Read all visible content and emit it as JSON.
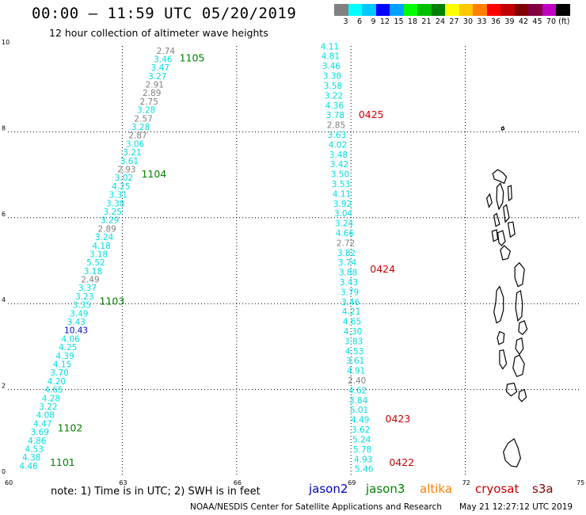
{
  "header": {
    "title": "00:00 – 11:59 UTC 05/20/2019",
    "subtitle": "12 hour collection of altimeter wave heights"
  },
  "colorbar": {
    "colors": [
      "#808080",
      "#00ffff",
      "#00c8ff",
      "#0000ff",
      "#00a0ff",
      "#00ff00",
      "#00c000",
      "#008000",
      "#ffff00",
      "#ffc800",
      "#ff8000",
      "#ff0000",
      "#c00000",
      "#800000",
      "#800040",
      "#c000c0",
      "#000000"
    ],
    "labels": [
      "3",
      "6",
      "9",
      "12",
      "15",
      "18",
      "21",
      "24",
      "27",
      "30",
      "33",
      "36",
      "39",
      "42",
      "45",
      "70",
      "(ft)"
    ]
  },
  "axes": {
    "x_ticks": [
      60,
      63,
      66,
      69,
      72,
      75
    ],
    "x_tick_labels": [
      "60",
      "63",
      "66",
      "69",
      "72",
      "75"
    ],
    "y_ticks": [
      0,
      2,
      4,
      6,
      8,
      10
    ],
    "y_tick_labels": [
      "0",
      "2",
      "4",
      "6",
      "8",
      "10"
    ],
    "xlim": [
      60,
      75
    ],
    "ylim": [
      0,
      10
    ]
  },
  "satellite_colors": {
    "jason2": "#0000cc",
    "jason3": "#008000",
    "altika": "#ff8000",
    "cryosat": "#cc0000",
    "s3a": "#8b0000",
    "gray": "#808080",
    "cyan": "#00e0e0"
  },
  "track1": {
    "start": [
      60.3,
      0.15
    ],
    "end": [
      63.9,
      9.82
    ],
    "values": [
      "4.46",
      "4.38",
      "4.53",
      "4.86",
      "3.69",
      "4.47",
      "4.08",
      "3.22",
      "4.28",
      "4.65",
      "4.20",
      "3.70",
      "4.15",
      "4.39",
      "4.25",
      "4.06",
      "10.43",
      "3.43",
      "3.49",
      "3.35",
      "3.23",
      "3.37",
      "2.49",
      "3.18",
      "5.52",
      "3.18",
      "4.18",
      "3.24",
      "2.89",
      "3.29",
      "3.25",
      "3.38",
      "3.31",
      "4.25",
      "3.02",
      "2.93",
      "3.61",
      "3.21",
      "3.06",
      "2.87",
      "3.28",
      "2.57",
      "3.28",
      "2.75",
      "2.89",
      "2.91",
      "3.27",
      "3.47",
      "3.46",
      "2.74"
    ],
    "colors": [
      "c",
      "c",
      "c",
      "c",
      "c",
      "c",
      "c",
      "c",
      "c",
      "c",
      "c",
      "c",
      "c",
      "c",
      "c",
      "c",
      "b",
      "c",
      "c",
      "c",
      "c",
      "c",
      "g",
      "c",
      "c",
      "c",
      "c",
      "c",
      "g",
      "c",
      "c",
      "c",
      "c",
      "c",
      "c",
      "g",
      "c",
      "c",
      "c",
      "g",
      "c",
      "g",
      "c",
      "g",
      "g",
      "g",
      "c",
      "c",
      "c",
      "g"
    ]
  },
  "track2": {
    "start": [
      69.1,
      0.08
    ],
    "end": [
      68.2,
      9.92
    ],
    "values": [
      "5.46",
      "4.93",
      "5.78",
      "5.24",
      "3.62",
      "4.49",
      "5.01",
      "3.84",
      "4.62",
      "2.40",
      "4.91",
      "3.61",
      "4.53",
      "3.83",
      "4.30",
      "4.65",
      "4.21",
      "3.46",
      "3.79",
      "3.43",
      "3.88",
      "3.74",
      "3.82",
      "2.72",
      "4.66",
      "3.24",
      "3.04",
      "3.92",
      "4.11",
      "3.53",
      "3.50",
      "3.42",
      "3.48",
      "4.02",
      "3.63",
      "2.85",
      "3.78",
      "4.36",
      "3.22",
      "3.58",
      "3.38",
      "3.46",
      "4.81",
      "4.11"
    ],
    "colors": [
      "c",
      "c",
      "c",
      "c",
      "c",
      "c",
      "c",
      "c",
      "c",
      "g",
      "c",
      "c",
      "c",
      "c",
      "c",
      "c",
      "c",
      "c",
      "c",
      "c",
      "c",
      "c",
      "c",
      "g",
      "c",
      "c",
      "c",
      "c",
      "c",
      "c",
      "c",
      "c",
      "c",
      "c",
      "c",
      "g",
      "c",
      "c",
      "c",
      "c",
      "c",
      "c",
      "c",
      "c"
    ]
  },
  "time_labels": [
    {
      "text": "1105",
      "x": 64.5,
      "y": 9.64,
      "sat": "jason3"
    },
    {
      "text": "1104",
      "x": 63.5,
      "y": 6.94,
      "sat": "jason3"
    },
    {
      "text": "1103",
      "x": 62.4,
      "y": 3.98,
      "sat": "jason3"
    },
    {
      "text": "1102",
      "x": 61.3,
      "y": 1.02,
      "sat": "jason3"
    },
    {
      "text": "1101",
      "x": 61.1,
      "y": 0.22,
      "sat": "jason3"
    },
    {
      "text": "0425",
      "x": 69.2,
      "y": 8.32,
      "sat": "cryosat"
    },
    {
      "text": "0424",
      "x": 69.5,
      "y": 4.72,
      "sat": "cryosat"
    },
    {
      "text": "0423",
      "x": 69.9,
      "y": 1.24,
      "sat": "cryosat"
    },
    {
      "text": "0422",
      "x": 70.0,
      "y": 0.22,
      "sat": "cryosat"
    }
  ],
  "islands": [
    [
      [
        72.95,
        8.1
      ],
      [
        73.0,
        8.12
      ],
      [
        73.02,
        8.06
      ],
      [
        72.96,
        8.04
      ]
    ],
    [
      [
        72.72,
        7.03
      ],
      [
        72.85,
        7.12
      ],
      [
        72.98,
        7.05
      ],
      [
        73.08,
        6.95
      ],
      [
        73.02,
        6.8
      ],
      [
        72.88,
        6.86
      ],
      [
        72.76,
        6.9
      ]
    ],
    [
      [
        72.83,
        6.72
      ],
      [
        72.92,
        6.8
      ],
      [
        73.0,
        6.6
      ],
      [
        72.98,
        6.35
      ],
      [
        72.88,
        6.2
      ],
      [
        72.82,
        6.42
      ]
    ],
    [
      [
        72.56,
        6.45
      ],
      [
        72.64,
        6.55
      ],
      [
        72.7,
        6.35
      ],
      [
        72.62,
        6.25
      ]
    ],
    [
      [
        73.12,
        6.72
      ],
      [
        73.2,
        6.75
      ],
      [
        73.22,
        6.45
      ],
      [
        73.14,
        6.4
      ]
    ],
    [
      [
        72.75,
        6.05
      ],
      [
        72.82,
        6.1
      ],
      [
        72.9,
        5.85
      ],
      [
        72.8,
        5.8
      ]
    ],
    [
      [
        73.0,
        6.25
      ],
      [
        73.08,
        6.3
      ],
      [
        73.15,
        6.0
      ],
      [
        73.05,
        5.9
      ]
    ],
    [
      [
        72.7,
        5.68
      ],
      [
        72.82,
        5.72
      ],
      [
        72.85,
        5.5
      ],
      [
        72.74,
        5.45
      ]
    ],
    [
      [
        72.85,
        5.65
      ],
      [
        72.98,
        5.7
      ],
      [
        73.05,
        5.45
      ],
      [
        72.95,
        5.35
      ],
      [
        72.88,
        5.42
      ]
    ],
    [
      [
        73.12,
        5.88
      ],
      [
        73.25,
        5.9
      ],
      [
        73.3,
        5.62
      ],
      [
        73.18,
        5.55
      ]
    ],
    [
      [
        72.92,
        5.25
      ],
      [
        73.02,
        5.35
      ],
      [
        73.18,
        5.22
      ],
      [
        73.12,
        5.05
      ],
      [
        72.98,
        5.02
      ]
    ],
    [
      [
        73.3,
        4.85
      ],
      [
        73.42,
        4.95
      ],
      [
        73.55,
        4.8
      ],
      [
        73.5,
        4.45
      ],
      [
        73.38,
        4.4
      ],
      [
        73.3,
        4.6
      ]
    ],
    [
      [
        72.82,
        4.3
      ],
      [
        72.9,
        4.4
      ],
      [
        73.0,
        4.15
      ],
      [
        73.0,
        3.85
      ],
      [
        72.92,
        3.6
      ],
      [
        72.82,
        3.55
      ],
      [
        72.75,
        3.8
      ],
      [
        72.8,
        4.05
      ]
    ],
    [
      [
        73.35,
        4.25
      ],
      [
        73.45,
        4.3
      ],
      [
        73.5,
        4.0
      ],
      [
        73.48,
        3.7
      ],
      [
        73.38,
        3.6
      ],
      [
        73.32,
        3.9
      ]
    ],
    [
      [
        73.42,
        3.55
      ],
      [
        73.55,
        3.6
      ],
      [
        73.62,
        3.4
      ],
      [
        73.5,
        3.28
      ],
      [
        73.4,
        3.35
      ]
    ],
    [
      [
        72.9,
        3.35
      ],
      [
        73.02,
        3.3
      ],
      [
        73.0,
        3.1
      ],
      [
        72.88,
        3.05
      ],
      [
        72.84,
        3.2
      ]
    ],
    [
      [
        73.35,
        3.15
      ],
      [
        73.48,
        3.2
      ],
      [
        73.52,
        2.95
      ],
      [
        73.42,
        2.82
      ],
      [
        73.32,
        2.95
      ]
    ],
    [
      [
        72.9,
        2.9
      ],
      [
        73.0,
        2.92
      ],
      [
        73.08,
        2.6
      ],
      [
        72.98,
        2.48
      ],
      [
        72.9,
        2.6
      ]
    ],
    [
      [
        73.3,
        2.75
      ],
      [
        73.42,
        2.8
      ],
      [
        73.55,
        2.6
      ],
      [
        73.5,
        2.35
      ],
      [
        73.35,
        2.3
      ],
      [
        73.25,
        2.5
      ]
    ],
    [
      [
        73.1,
        2.12
      ],
      [
        73.28,
        2.15
      ],
      [
        73.35,
        1.95
      ],
      [
        73.2,
        1.85
      ],
      [
        73.08,
        1.95
      ]
    ],
    [
      [
        73.42,
        1.95
      ],
      [
        73.55,
        2.0
      ],
      [
        73.6,
        1.82
      ],
      [
        73.48,
        1.72
      ],
      [
        73.4,
        1.8
      ]
    ],
    [
      [
        73.12,
        0.75
      ],
      [
        73.28,
        0.85
      ],
      [
        73.38,
        0.65
      ],
      [
        73.45,
        0.4
      ],
      [
        73.35,
        0.2
      ],
      [
        73.2,
        0.22
      ],
      [
        73.05,
        0.35
      ],
      [
        73.0,
        0.55
      ]
    ]
  ],
  "footer": {
    "note": "note: 1) Time is in UTC; 2) SWH is in feet",
    "legend": [
      "jason2",
      "jason3",
      "altika",
      "cryosat",
      "s3a"
    ],
    "credit": "NOAA/NESDIS Center for Satellite Applications and Research",
    "timestamp": "May 21 12:27:12 UTC 2019"
  }
}
